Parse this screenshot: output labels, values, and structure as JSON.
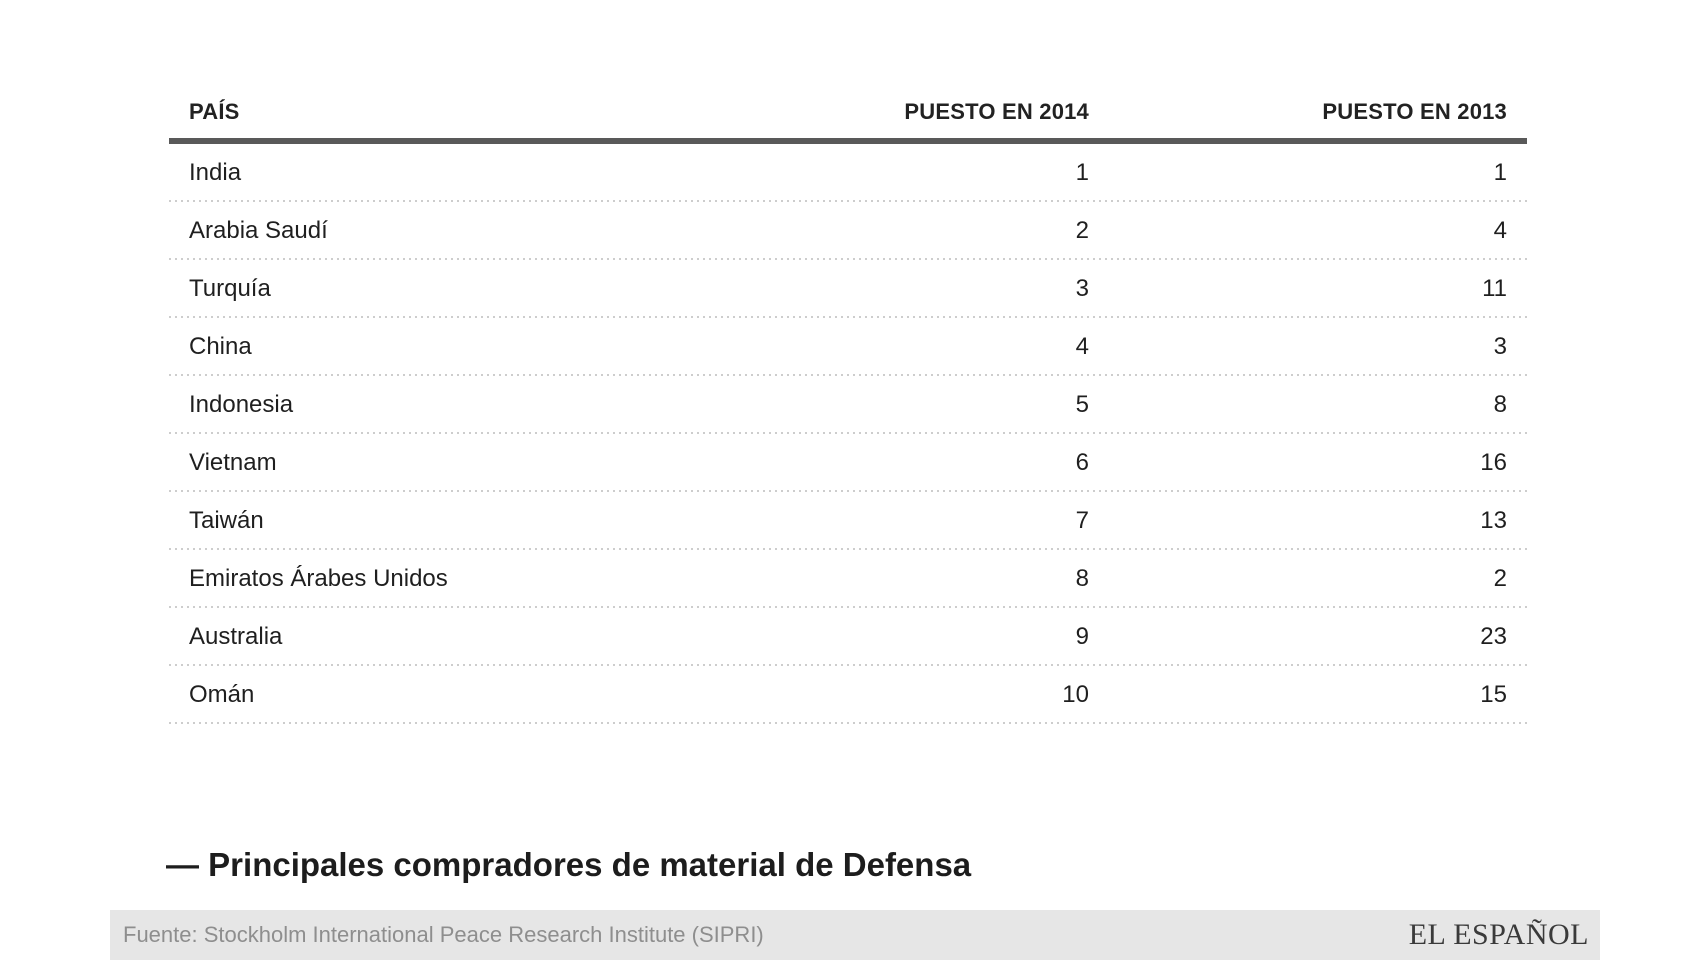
{
  "chart_data": {
    "type": "table",
    "title": "— Principales compradores de material de Defensa",
    "columns": [
      "PAÍS",
      "PUESTO EN 2014",
      "PUESTO EN 2013"
    ],
    "rows": [
      {
        "country": "India",
        "puesto_2014": "1",
        "puesto_2013": "1"
      },
      {
        "country": "Arabia Saudí",
        "puesto_2014": "2",
        "puesto_2013": "4"
      },
      {
        "country": "Turquía",
        "puesto_2014": "3",
        "puesto_2013": "11"
      },
      {
        "country": "China",
        "puesto_2014": "4",
        "puesto_2013": "3"
      },
      {
        "country": "Indonesia",
        "puesto_2014": "5",
        "puesto_2013": "8"
      },
      {
        "country": "Vietnam",
        "puesto_2014": "6",
        "puesto_2013": "16"
      },
      {
        "country": "Taiwán",
        "puesto_2014": "7",
        "puesto_2013": "13"
      },
      {
        "country": "Emiratos Árabes Unidos",
        "puesto_2014": "8",
        "puesto_2013": "2"
      },
      {
        "country": "Australia",
        "puesto_2014": "9",
        "puesto_2013": "23"
      },
      {
        "country": "Omán",
        "puesto_2014": "10",
        "puesto_2013": "15"
      }
    ],
    "source": "Fuente: Stockholm International Peace Research Institute (SIPRI)",
    "layout": {
      "grid": "off",
      "legend": "none"
    }
  },
  "title": "— Principales compradores de material de Defensa",
  "footer": {
    "source": "Fuente: Stockholm International Peace Research Institute (SIPRI)",
    "brand": "EL ESPAÑOL"
  },
  "colors": {
    "header_rule": "#595959",
    "dotted_separator": "#cdcdcd",
    "footer_background": "#e6e6e6",
    "footer_text": "#8e8e8e",
    "body_text": "#1f1f1f",
    "brand_text": "#3a3a3a"
  }
}
